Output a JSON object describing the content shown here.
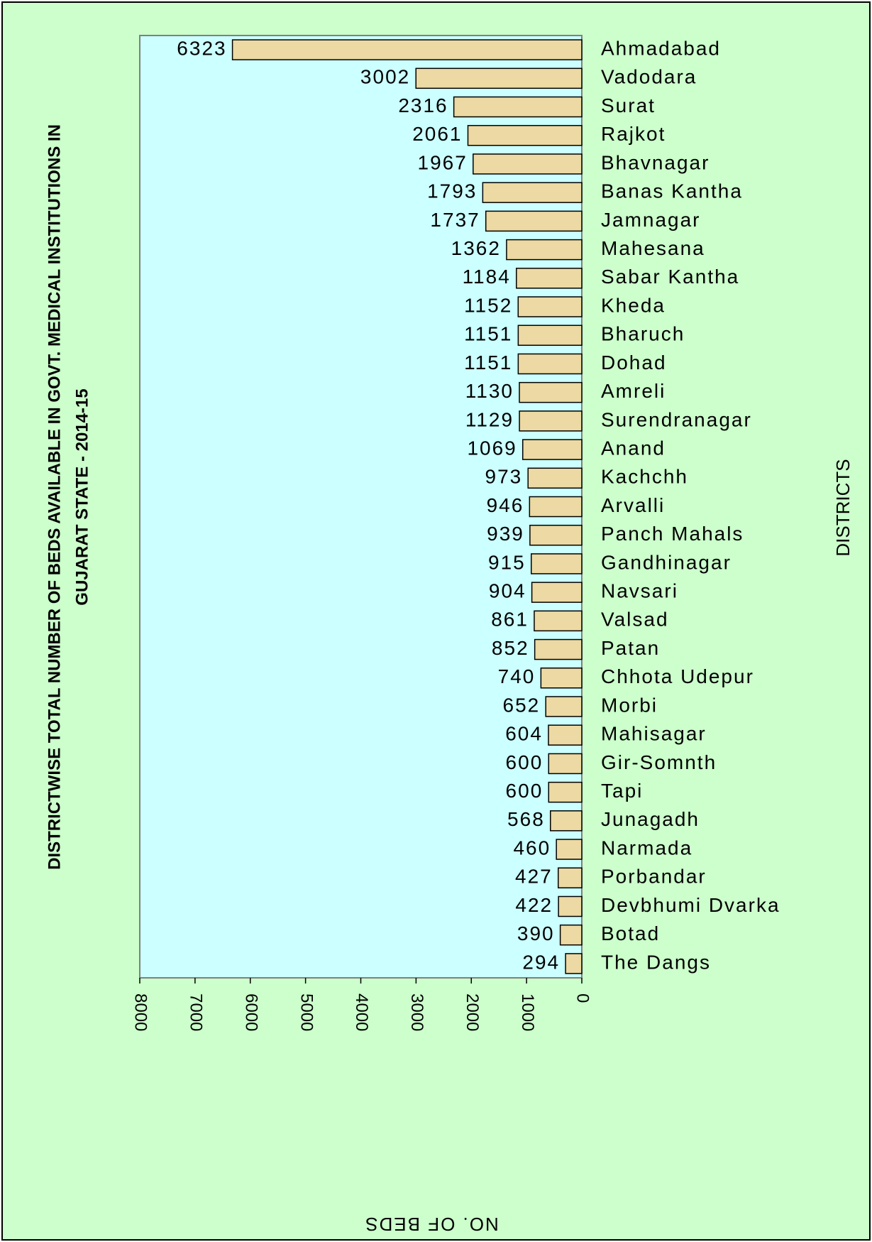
{
  "chart_data": {
    "type": "bar",
    "orientation": "horizontal",
    "title": [
      "DISTRICTWISE TOTAL NUMBER OF BEDS AVAILABLE IN GOVT. MEDICAL INSTITUTIONS IN",
      "GUJARAT STATE - 2014-15"
    ],
    "x_label": "NO. OF BEDS",
    "y_label": "DISTRICTS",
    "categories": [
      "Ahmadabad",
      "Vadodara",
      "Surat",
      "Rajkot",
      "Bhavnagar",
      "Banas Kantha",
      "Jamnagar",
      "Mahesana",
      "Sabar Kantha",
      "Kheda",
      "Bharuch",
      "Dohad",
      "Amreli",
      "Surendranagar",
      "Anand",
      "Kachchh",
      "Arvalli",
      "Panch Mahals",
      "Gandhinagar",
      "Navsari",
      "Valsad",
      "Patan",
      "Chhota Udepur",
      "Morbi",
      "Mahisagar",
      "Gir-Somnth",
      "Tapi",
      "Junagadh",
      "Narmada",
      "Porbandar",
      "Devbhumi Dvarka",
      "Botad",
      "The Dangs"
    ],
    "values": [
      6323,
      3002,
      2316,
      2061,
      1967,
      1793,
      1737,
      1362,
      1184,
      1152,
      1151,
      1151,
      1130,
      1129,
      1069,
      973,
      946,
      939,
      915,
      904,
      861,
      852,
      740,
      652,
      604,
      600,
      600,
      568,
      460,
      427,
      422,
      390,
      294
    ],
    "color": "#ecd9a3",
    "xlim": [
      8000,
      0
    ],
    "xticks": [
      8000,
      7000,
      6000,
      5000,
      4000,
      3000,
      2000,
      1000,
      0
    ],
    "grid": false
  }
}
